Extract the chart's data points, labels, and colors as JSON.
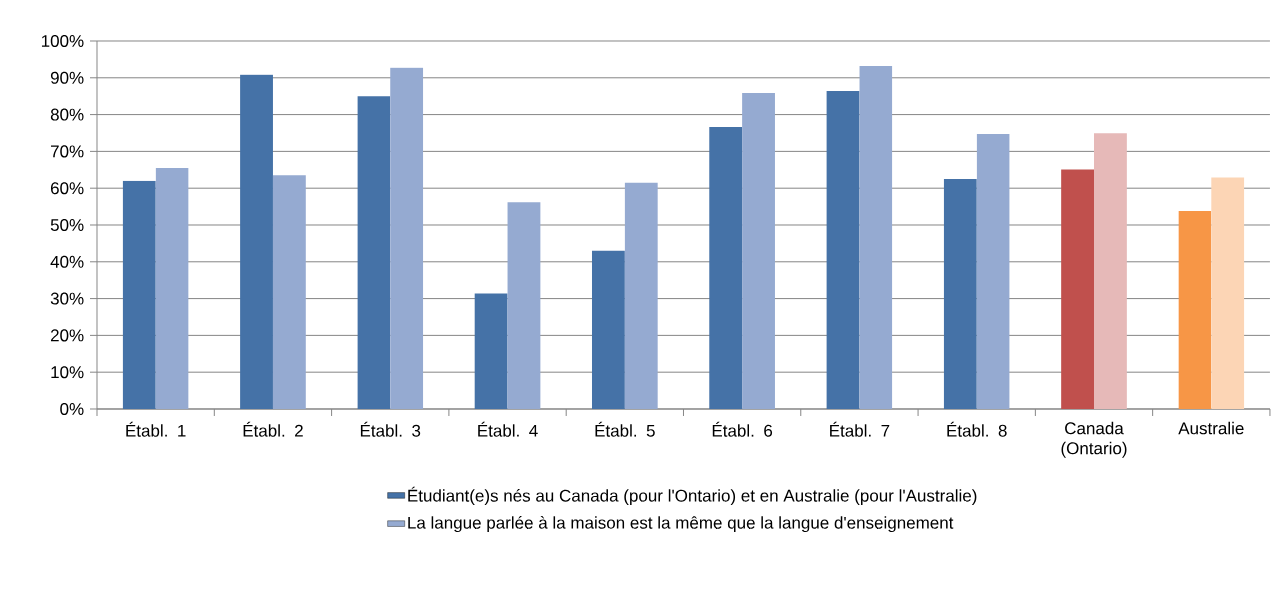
{
  "chart_data": {
    "type": "bar",
    "categories": [
      "Établ. 1",
      "Établ. 2",
      "Établ. 3",
      "Établ. 4",
      "Établ. 5",
      "Établ. 6",
      "Établ. 7",
      "Établ. 8",
      "Canada (Ontario)",
      "Australie"
    ],
    "series": [
      {
        "name": "Étudiant(e)s nés au Canada (pour l'Ontario) et en Australie (pour l'Australie)",
        "color": "#4572a7",
        "colors": [
          "#4572a7",
          "#4572a7",
          "#4572a7",
          "#4572a7",
          "#4572a7",
          "#4572a7",
          "#4572a7",
          "#4572a7",
          "#c0504d",
          "#f79646"
        ],
        "values": [
          62.0,
          90.8,
          85.0,
          31.4,
          43.0,
          76.6,
          86.4,
          62.5,
          65.1,
          53.8
        ]
      },
      {
        "name": "La langue parlée à la maison est la même que la langue d'enseignement",
        "color": "#95aad1",
        "colors": [
          "#95aad1",
          "#95aad1",
          "#95aad1",
          "#95aad1",
          "#95aad1",
          "#95aad1",
          "#95aad1",
          "#95aad1",
          "#e6b9b8",
          "#fcd5b5"
        ],
        "values": [
          65.5,
          63.5,
          92.7,
          56.2,
          61.5,
          85.9,
          93.2,
          74.7,
          74.9,
          62.9
        ]
      }
    ],
    "ylim": [
      0,
      100
    ],
    "yticks": [
      {
        "value": 0,
        "label": "0%"
      },
      {
        "value": 10,
        "label": "10%"
      },
      {
        "value": 20,
        "label": "20%"
      },
      {
        "value": 30,
        "label": "30%"
      },
      {
        "value": 40,
        "label": "40%"
      },
      {
        "value": 50,
        "label": "50%"
      },
      {
        "value": 60,
        "label": "60%"
      },
      {
        "value": 70,
        "label": "70%"
      },
      {
        "value": 80,
        "label": "80%"
      },
      {
        "value": 90,
        "label": "90%"
      },
      {
        "value": 100,
        "label": "100%"
      }
    ],
    "grid": "y",
    "legend": "bottom"
  }
}
